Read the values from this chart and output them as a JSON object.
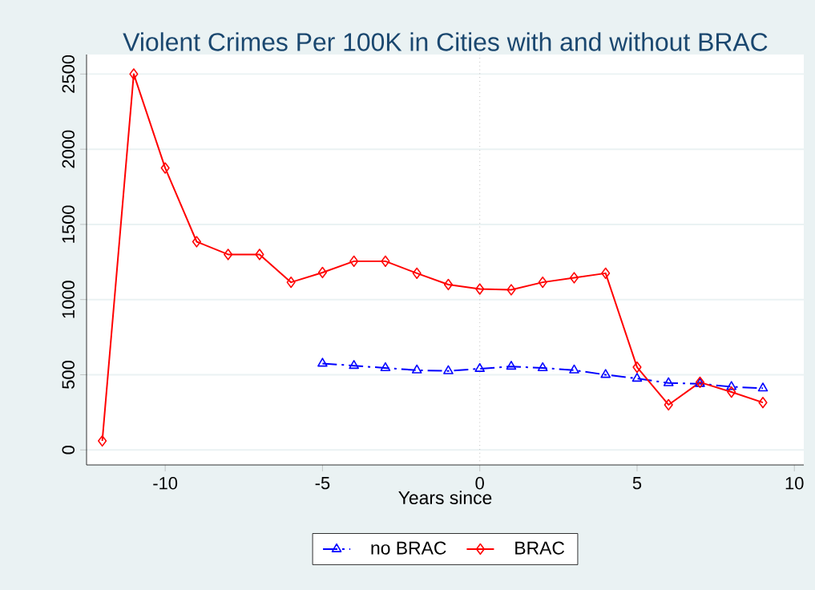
{
  "chart_data": {
    "type": "line",
    "title": "Violent Crimes Per 100K in Cities with and without BRAC",
    "xlabel": "Years since",
    "xlim": [
      -12.5,
      10.3
    ],
    "ylim": [
      -100,
      2630
    ],
    "xticks": [
      -10,
      -5,
      0,
      5,
      10
    ],
    "yticks": [
      0,
      500,
      1000,
      1500,
      2000,
      2500
    ],
    "grid": "y",
    "legend": "bottom",
    "ref_lines": [
      {
        "axis": "x",
        "value": 0,
        "color": "#a0a0a0",
        "line_style": "dotted"
      }
    ],
    "series": [
      {
        "name": "no BRAC",
        "color": "#0000ff",
        "marker": "triangle",
        "line_style": "dashdot",
        "x": [
          -5,
          -4,
          -3,
          -2,
          -1,
          0,
          1,
          2,
          3,
          4,
          5,
          6,
          7,
          8,
          9
        ],
        "values": [
          575,
          560,
          545,
          530,
          525,
          540,
          555,
          545,
          530,
          500,
          475,
          445,
          440,
          420,
          410
        ]
      },
      {
        "name": "BRAC",
        "color": "#ff0000",
        "marker": "diamond",
        "line_style": "solid",
        "x": [
          -12,
          -11,
          -10,
          -9,
          -8,
          -7,
          -6,
          -5,
          -4,
          -3,
          -2,
          -1,
          0,
          1,
          2,
          3,
          4,
          5,
          6,
          7,
          8,
          9
        ],
        "values": [
          60,
          2500,
          1875,
          1385,
          1300,
          1300,
          1115,
          1180,
          1255,
          1255,
          1175,
          1100,
          1070,
          1065,
          1115,
          1145,
          1175,
          550,
          300,
          450,
          385,
          315
        ]
      }
    ]
  }
}
